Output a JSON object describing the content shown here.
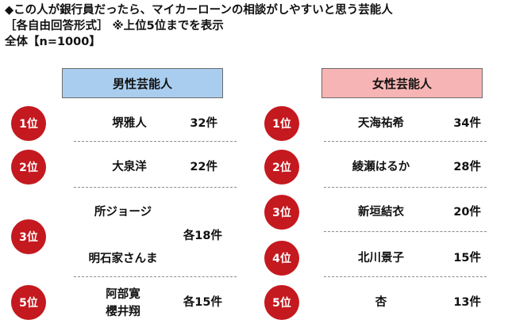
{
  "header": {
    "line1": "◆この人が銀行員だったら、マイカーローンの相談がしやすいと思う芸能人",
    "line2": "［各自由回答形式］ ※上位5位までを表示",
    "line3": "全体【n=1000】"
  },
  "male": {
    "heading": "男性芸能人",
    "ranks": [
      {
        "rank": "1位",
        "names": [
          "堺雅人"
        ],
        "count": "32件"
      },
      {
        "rank": "2位",
        "names": [
          "大泉洋"
        ],
        "count": "22件"
      },
      {
        "rank": "3位",
        "names": [
          "所ジョージ",
          "明石家さんま"
        ],
        "count": "各18件"
      },
      {
        "rank": "5位",
        "names": [
          "阿部寛",
          "櫻井翔"
        ],
        "count": "各15件"
      }
    ]
  },
  "female": {
    "heading": "女性芸能人",
    "ranks": [
      {
        "rank": "1位",
        "names": [
          "天海祐希"
        ],
        "count": "34件"
      },
      {
        "rank": "2位",
        "names": [
          "綾瀬はるか"
        ],
        "count": "28件"
      },
      {
        "rank": "3位",
        "names": [
          "新垣結衣"
        ],
        "count": "20件"
      },
      {
        "rank": "4位",
        "names": [
          "北川景子"
        ],
        "count": "15件"
      },
      {
        "rank": "5位",
        "names": [
          "杏"
        ],
        "count": "13件"
      }
    ]
  },
  "colors": {
    "badge": "#c4191f",
    "male_header": "#a9cdee",
    "female_header": "#f7b4b4"
  }
}
